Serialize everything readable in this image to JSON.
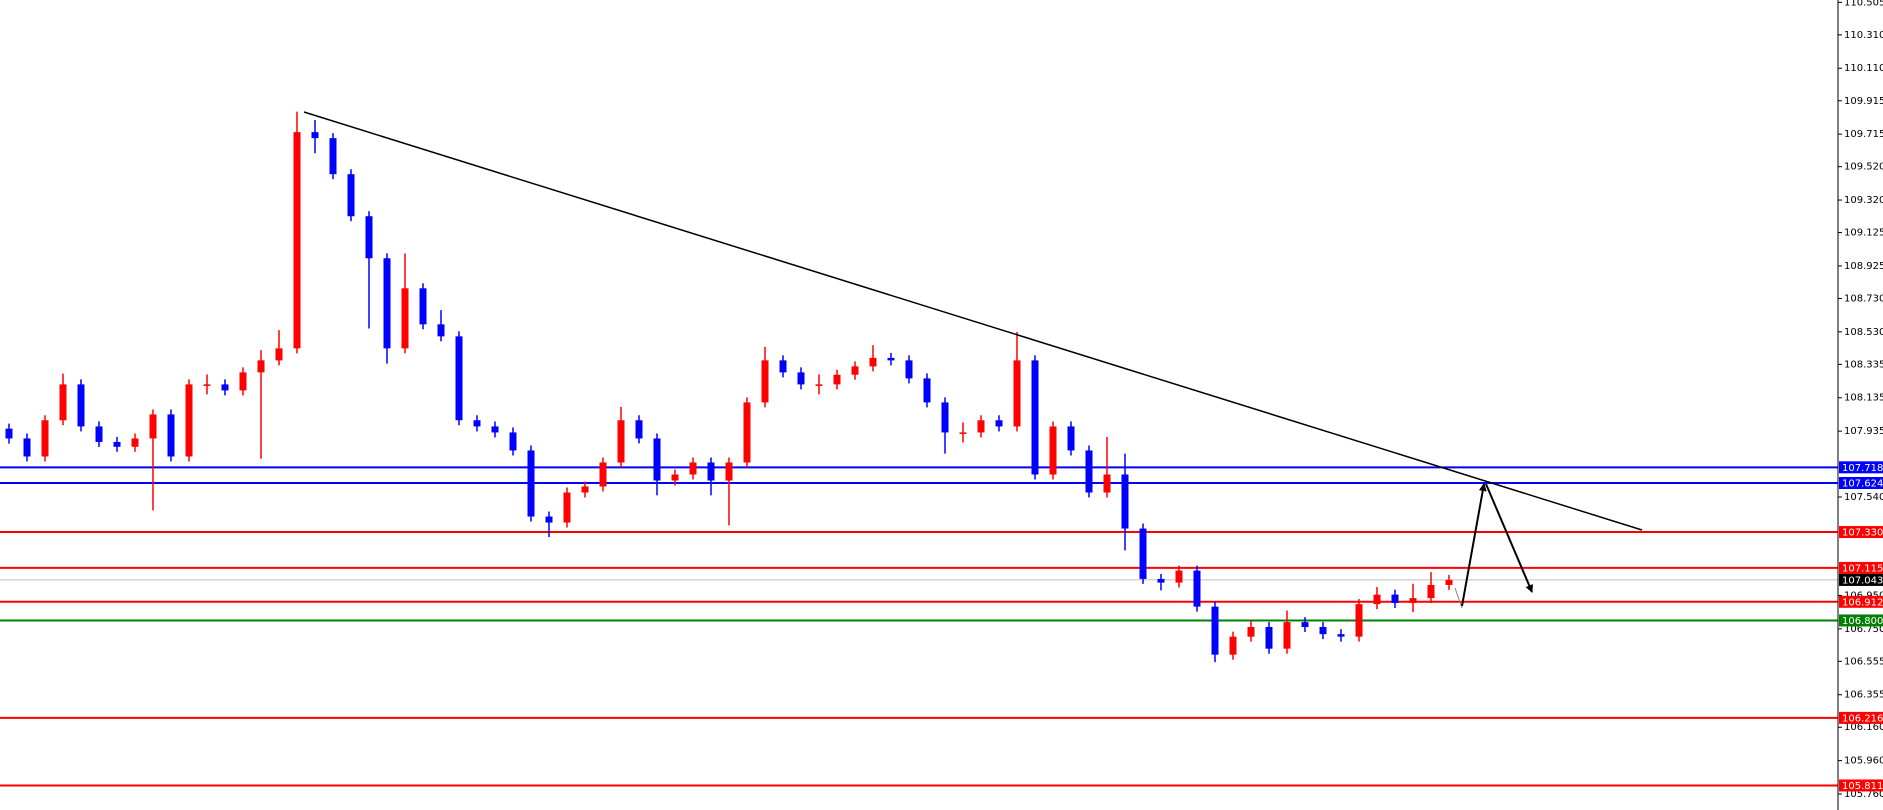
{
  "chart_data": {
    "type": "candlestick",
    "up_color": "#ff0000",
    "down_color": "#0000ff",
    "open": [
      107.95,
      107.891,
      107.783,
      108.0,
      108.215,
      107.963,
      107.87,
      107.841,
      107.891,
      108.035,
      107.783,
      108.215,
      108.215,
      108.179,
      108.287,
      108.359,
      108.431,
      109.727,
      109.691,
      109.475,
      109.223,
      108.971,
      108.431,
      108.791,
      108.575,
      108.503,
      108.0,
      107.963,
      107.927,
      107.819,
      107.423,
      107.387,
      107.567,
      107.603,
      107.747,
      108.0,
      107.891,
      107.639,
      107.675,
      107.747,
      107.639,
      107.747,
      108.107,
      108.359,
      108.287,
      108.215,
      108.215,
      108.273,
      108.323,
      108.374,
      108.359,
      108.251,
      108.107,
      107.927,
      107.927,
      108.0,
      107.963,
      108.359,
      107.675,
      107.963,
      107.819,
      107.567,
      107.675,
      107.351,
      107.049,
      107.027,
      107.099,
      106.883,
      106.595,
      106.703,
      106.761,
      106.631,
      106.79,
      106.761,
      106.718,
      106.703,
      106.898,
      106.955,
      106.905,
      106.934,
      107.013
    ],
    "high": [
      107.98,
      107.921,
      108.03,
      108.28,
      108.245,
      107.993,
      107.9,
      107.921,
      108.065,
      108.065,
      108.245,
      108.275,
      108.245,
      108.317,
      108.42,
      108.54,
      109.85,
      109.8,
      109.721,
      109.505,
      109.253,
      109.001,
      109.0,
      108.821,
      108.66,
      108.533,
      108.03,
      107.993,
      107.957,
      107.849,
      107.453,
      107.597,
      107.633,
      107.777,
      108.08,
      108.03,
      107.921,
      107.705,
      107.777,
      107.777,
      107.777,
      108.137,
      108.44,
      108.389,
      108.317,
      108.275,
      108.303,
      108.353,
      108.45,
      108.404,
      108.389,
      108.281,
      108.137,
      107.987,
      108.03,
      108.03,
      108.53,
      108.389,
      107.993,
      107.993,
      107.849,
      107.9,
      107.8,
      107.381,
      107.079,
      107.129,
      107.129,
      106.913,
      106.733,
      106.8,
      106.791,
      106.86,
      106.82,
      106.791,
      106.748,
      106.928,
      107.0,
      106.985,
      107.02,
      107.09,
      107.073
    ],
    "low": [
      107.86,
      107.753,
      107.753,
      107.97,
      107.933,
      107.84,
      107.811,
      107.811,
      107.46,
      107.753,
      107.753,
      108.155,
      108.149,
      108.149,
      107.77,
      108.329,
      108.401,
      109.6,
      109.445,
      109.193,
      108.55,
      108.34,
      108.401,
      108.545,
      108.473,
      107.97,
      107.933,
      107.897,
      107.789,
      107.393,
      107.3,
      107.357,
      107.537,
      107.573,
      107.717,
      107.861,
      107.55,
      107.609,
      107.645,
      107.55,
      107.37,
      107.717,
      108.077,
      108.257,
      108.185,
      108.155,
      108.185,
      108.243,
      108.293,
      108.329,
      108.221,
      108.077,
      107.8,
      107.867,
      107.897,
      107.933,
      107.933,
      107.645,
      107.645,
      107.789,
      107.537,
      107.537,
      107.22,
      107.019,
      106.98,
      106.997,
      106.853,
      106.55,
      106.565,
      106.673,
      106.601,
      106.601,
      106.731,
      106.688,
      106.673,
      106.673,
      106.868,
      106.875,
      106.85,
      106.904,
      106.983
    ],
    "close": [
      107.891,
      107.783,
      108.0,
      108.215,
      107.963,
      107.87,
      107.841,
      107.891,
      108.035,
      107.783,
      108.215,
      108.215,
      108.179,
      108.287,
      108.359,
      108.431,
      109.727,
      109.691,
      109.475,
      109.223,
      108.971,
      108.431,
      108.791,
      108.575,
      108.503,
      108.0,
      107.963,
      107.927,
      107.819,
      107.423,
      107.387,
      107.567,
      107.603,
      107.747,
      108.0,
      107.891,
      107.639,
      107.675,
      107.747,
      107.639,
      107.747,
      108.107,
      108.359,
      108.287,
      108.215,
      108.215,
      108.273,
      108.323,
      108.374,
      108.359,
      108.251,
      108.107,
      107.927,
      107.927,
      108.0,
      107.963,
      108.359,
      107.675,
      107.963,
      107.819,
      107.567,
      107.675,
      107.351,
      107.049,
      107.027,
      107.099,
      106.883,
      106.595,
      106.703,
      106.761,
      106.631,
      106.79,
      106.761,
      106.718,
      106.703,
      106.898,
      106.955,
      106.905,
      106.934,
      107.013,
      107.043
    ],
    "ylim": [
      105.664,
      110.519
    ],
    "yticks": [
      {
        "value": 110.505,
        "label": "110.505"
      },
      {
        "value": 110.31,
        "label": "110.310"
      },
      {
        "value": 110.11,
        "label": "110.110"
      },
      {
        "value": 109.915,
        "label": "109.915"
      },
      {
        "value": 109.715,
        "label": "109.715"
      },
      {
        "value": 109.52,
        "label": "109.520"
      },
      {
        "value": 109.32,
        "label": "109.320"
      },
      {
        "value": 109.125,
        "label": "109.125"
      },
      {
        "value": 108.925,
        "label": "108.925"
      },
      {
        "value": 108.73,
        "label": "108.730"
      },
      {
        "value": 108.53,
        "label": "108.530"
      },
      {
        "value": 108.335,
        "label": "108.335"
      },
      {
        "value": 108.135,
        "label": "108.135"
      },
      {
        "value": 107.935,
        "label": "107.935"
      },
      {
        "value": 107.54,
        "label": "107.540"
      },
      {
        "value": 106.95,
        "label": "106.950"
      },
      {
        "value": 106.75,
        "label": "106.750"
      },
      {
        "value": 106.555,
        "label": "106.555"
      },
      {
        "value": 106.355,
        "label": "106.355"
      },
      {
        "value": 106.16,
        "label": "106.160"
      },
      {
        "value": 105.96,
        "label": "105.960"
      },
      {
        "value": 105.76,
        "label": "105.760"
      }
    ],
    "levels": [
      {
        "value": 107.718,
        "label": "107.718",
        "color": "#0000ff"
      },
      {
        "value": 107.624,
        "label": "107.624",
        "color": "#0000ff"
      },
      {
        "value": 107.33,
        "label": "107.330",
        "color": "#ff0000"
      },
      {
        "value": 107.115,
        "label": "107.115",
        "color": "#ff0000"
      },
      {
        "value": 107.043,
        "label": "107.043",
        "color": "#c0c0c0",
        "label_color": "#000000"
      },
      {
        "value": 106.912,
        "label": "106.912",
        "color": "#ff0000"
      },
      {
        "value": 106.8,
        "label": "106.800",
        "color": "#008000"
      },
      {
        "value": 106.216,
        "label": "106.216",
        "color": "#ff0000"
      },
      {
        "value": 105.811,
        "label": "105.811",
        "color": "#ff0000"
      }
    ]
  }
}
